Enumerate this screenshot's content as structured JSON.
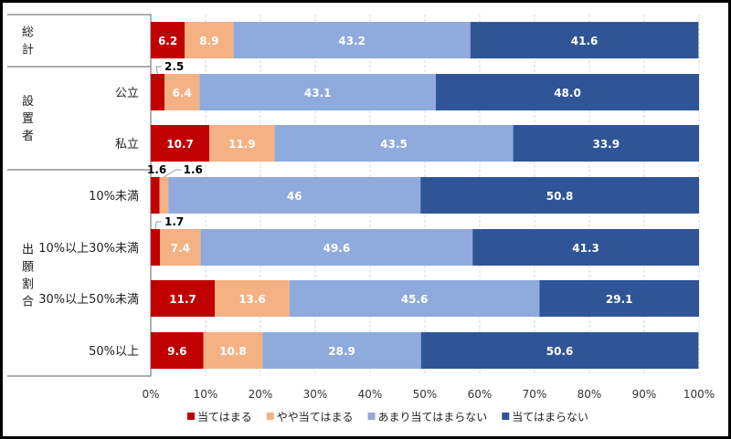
{
  "chart_data": {
    "type": "bar",
    "orientation": "horizontal",
    "stacked": "100%",
    "groups": [
      {
        "label": "総計",
        "categories": [
          "総計"
        ]
      },
      {
        "label": "設置者",
        "categories": [
          "公立",
          "私立"
        ]
      },
      {
        "label": "出願割合",
        "categories": [
          "10%未満",
          "10%以上30%未満",
          "30%以上50%未満",
          "50%以上"
        ]
      }
    ],
    "categories": [
      "総計",
      "公立",
      "私立",
      "10%未満",
      "10%以上30%未満",
      "30%以上50%未満",
      "50%以上"
    ],
    "series": [
      {
        "name": "当てはまる",
        "color": "#C00000",
        "values": [
          6.2,
          2.5,
          10.7,
          1.6,
          1.7,
          11.7,
          9.6
        ]
      },
      {
        "name": "やや当てはまる",
        "color": "#F4B183",
        "values": [
          8.9,
          6.4,
          11.9,
          1.6,
          7.4,
          13.6,
          10.8
        ]
      },
      {
        "name": "あまり当てはまらない",
        "color": "#8FAADC",
        "values": [
          43.2,
          43.1,
          43.5,
          46,
          49.6,
          45.6,
          28.9
        ]
      },
      {
        "name": "当てはまらない",
        "color": "#2F5597",
        "values": [
          41.6,
          48.0,
          33.9,
          50.8,
          41.3,
          29.1,
          50.6
        ]
      }
    ],
    "data_labels": [
      [
        "6.2",
        "8.9",
        "43.2",
        "41.6"
      ],
      [
        "2.5",
        "6.4",
        "43.1",
        "48.0"
      ],
      [
        "10.7",
        "11.9",
        "43.5",
        "33.9"
      ],
      [
        "1.6",
        "1.6",
        "46",
        "50.8"
      ],
      [
        "1.7",
        "7.4",
        "49.6",
        "41.3"
      ],
      [
        "11.7",
        "13.6",
        "45.6",
        "29.1"
      ],
      [
        "9.6",
        "10.8",
        "28.9",
        "50.6"
      ]
    ],
    "xlim": [
      0,
      100
    ],
    "xticks": [
      "0%",
      "10%",
      "20%",
      "30%",
      "40%",
      "50%",
      "60%",
      "70%",
      "80%",
      "90%",
      "100%"
    ],
    "grid": "vertical-dashed",
    "legend_position": "bottom"
  }
}
